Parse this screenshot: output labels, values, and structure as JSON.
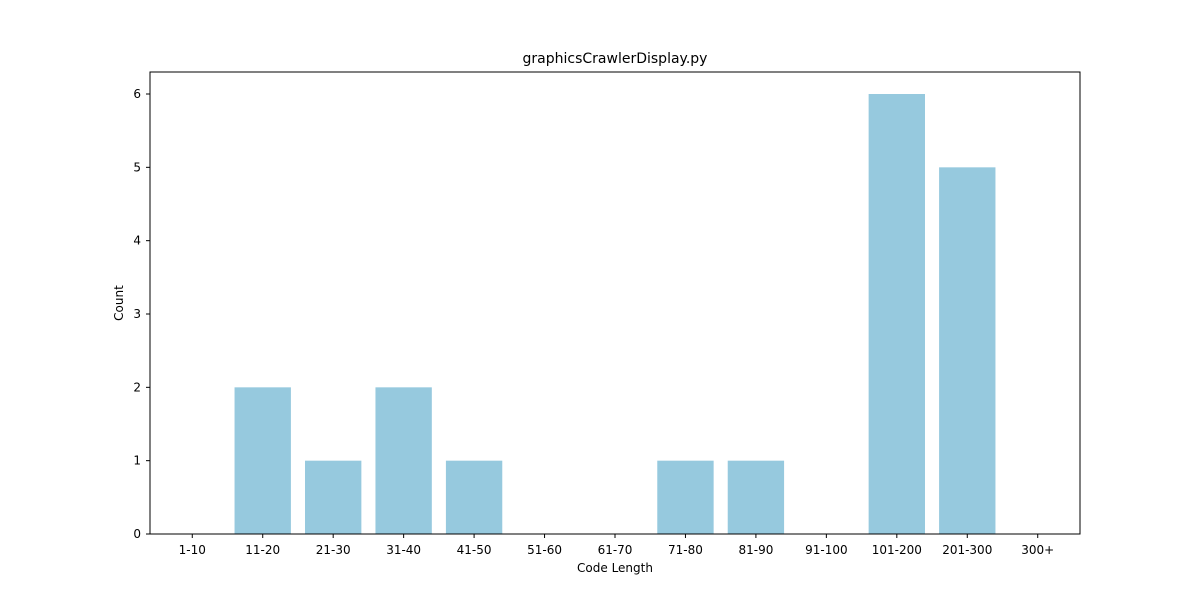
{
  "chart_data": {
    "type": "bar",
    "title": "graphicsCrawlerDisplay.py",
    "xlabel": "Code Length",
    "ylabel": "Count",
    "categories": [
      "1-10",
      "11-20",
      "21-30",
      "31-40",
      "41-50",
      "51-60",
      "61-70",
      "71-80",
      "81-90",
      "91-100",
      "101-200",
      "201-300",
      "300+"
    ],
    "values": [
      0,
      2,
      1,
      2,
      1,
      0,
      0,
      1,
      1,
      0,
      6,
      5,
      0
    ],
    "ylim": [
      0,
      6.3
    ],
    "yticks": [
      0,
      1,
      2,
      3,
      4,
      5,
      6
    ],
    "bar_color": "#96c9de",
    "grid": false,
    "legend": "none"
  }
}
